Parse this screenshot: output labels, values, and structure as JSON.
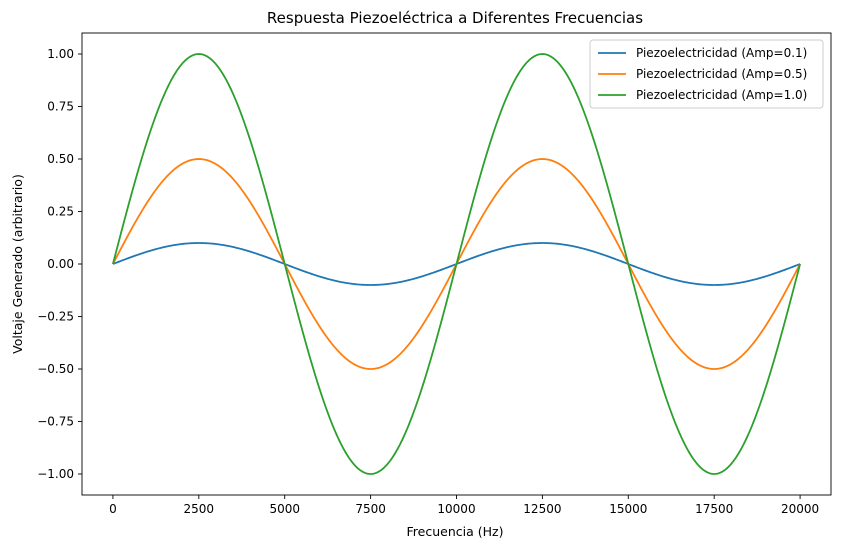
{
  "chart_data": {
    "type": "line",
    "title": "Respuesta Piezoeléctrica a Diferentes Frecuencias",
    "xlabel": "Frecuencia (Hz)",
    "ylabel": "Voltaje Generado (arbitrario)",
    "xlim": [
      -900,
      20900
    ],
    "ylim": [
      -1.1,
      1.1
    ],
    "x_ticks": [
      0,
      2500,
      5000,
      7500,
      10000,
      12500,
      15000,
      17500,
      20000
    ],
    "x_tick_labels": [
      "0",
      "2500",
      "5000",
      "7500",
      "10000",
      "12500",
      "15000",
      "17500",
      "20000"
    ],
    "y_ticks": [
      -1.0,
      -0.75,
      -0.5,
      -0.25,
      0.0,
      0.25,
      0.5,
      0.75,
      1.0
    ],
    "y_tick_labels": [
      "−1.00",
      "−0.75",
      "−0.50",
      "−0.25",
      "0.00",
      "0.25",
      "0.50",
      "0.75",
      "1.00"
    ],
    "grid": false,
    "legend_position": "top-right",
    "x": [
      0,
      1000,
      2000,
      2500,
      3000,
      4000,
      5000,
      6000,
      7000,
      7500,
      8000,
      9000,
      10000,
      11000,
      12000,
      12500,
      13000,
      14000,
      15000,
      16000,
      17000,
      17500,
      18000,
      19000,
      20000
    ],
    "series": [
      {
        "name": "Piezoelectricidad (Amp=0.1)",
        "color": "#1f77b4",
        "values": [
          0.0,
          0.059,
          0.095,
          0.1,
          0.095,
          0.059,
          0.0,
          -0.059,
          -0.095,
          -0.1,
          -0.095,
          -0.059,
          0.0,
          0.059,
          0.095,
          0.1,
          0.095,
          0.059,
          0.0,
          -0.059,
          -0.095,
          -0.1,
          -0.095,
          -0.059,
          0.0
        ]
      },
      {
        "name": "Piezoelectricidad (Amp=0.5)",
        "color": "#ff7f0e",
        "values": [
          0.0,
          0.294,
          0.476,
          0.5,
          0.476,
          0.294,
          0.0,
          -0.294,
          -0.476,
          -0.5,
          -0.476,
          -0.294,
          0.0,
          0.294,
          0.476,
          0.5,
          0.476,
          0.294,
          0.0,
          -0.294,
          -0.476,
          -0.5,
          -0.476,
          -0.294,
          0.0
        ]
      },
      {
        "name": "Piezoelectricidad (Amp=1.0)",
        "color": "#2ca02c",
        "values": [
          0.0,
          0.588,
          0.951,
          1.0,
          0.951,
          0.588,
          0.0,
          -0.588,
          -0.951,
          -1.0,
          -0.951,
          -0.588,
          0.0,
          0.588,
          0.951,
          1.0,
          0.951,
          0.588,
          0.0,
          -0.588,
          -0.951,
          -1.0,
          -0.951,
          -0.588,
          0.0
        ]
      }
    ]
  }
}
